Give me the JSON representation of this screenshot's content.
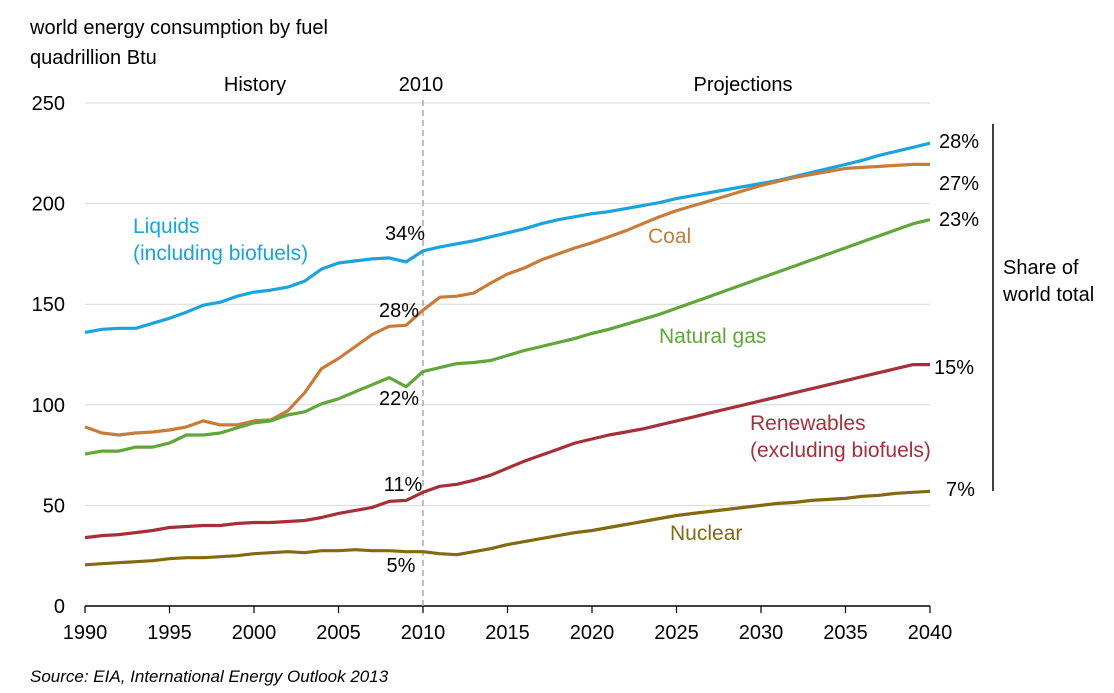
{
  "chart_data": {
    "type": "line",
    "title": "world energy consumption by fuel",
    "ylabel": "quadrillion Btu",
    "xlim": [
      1990,
      2040
    ],
    "ylim": [
      0,
      250
    ],
    "x_ticks": [
      "1990",
      "1995",
      "2000",
      "2005",
      "2010",
      "2015",
      "2020",
      "2025",
      "2030",
      "2035",
      "2040"
    ],
    "y_ticks": [
      "0",
      "50",
      "100",
      "150",
      "200",
      "250"
    ],
    "grid": "horizontal",
    "divider": {
      "x": 2010,
      "label": "2010",
      "left_label": "History",
      "right_label": "Projections"
    },
    "share_label": "Share of\nworld total",
    "series": [
      {
        "name": "Liquids\n(including biofuels)",
        "color": "#1ba3dd",
        "x": [
          1990,
          1991,
          1992,
          1993,
          1994,
          1995,
          1996,
          1997,
          1998,
          1999,
          2000,
          2001,
          2002,
          2003,
          2004,
          2005,
          2006,
          2007,
          2008,
          2009,
          2010,
          2011,
          2012,
          2013,
          2014,
          2015,
          2016,
          2017,
          2018,
          2019,
          2020,
          2021,
          2022,
          2023,
          2024,
          2025,
          2026,
          2027,
          2028,
          2029,
          2030,
          2031,
          2032,
          2033,
          2034,
          2035,
          2036,
          2037,
          2038,
          2039,
          2040
        ],
        "values": [
          136,
          137.5,
          138,
          138,
          140.5,
          143,
          146,
          149.5,
          151,
          154,
          156,
          157,
          158.5,
          161.5,
          167.5,
          170.5,
          171.5,
          172.5,
          173,
          171,
          176.5,
          178.5,
          180,
          181.5,
          183.5,
          185.5,
          187.5,
          190,
          192,
          193.5,
          195,
          196,
          197.5,
          199,
          200.5,
          202.5,
          204,
          205.5,
          207,
          208.5,
          210,
          211.5,
          213.5,
          215.5,
          217.5,
          219.5,
          221.5,
          224,
          226,
          228,
          230
        ],
        "share_2010": "34%",
        "share_2040": "28%"
      },
      {
        "name": "Coal",
        "color": "#c97b39",
        "x": [
          1990,
          1991,
          1992,
          1993,
          1994,
          1995,
          1996,
          1997,
          1998,
          1999,
          2000,
          2001,
          2002,
          2003,
          2004,
          2005,
          2006,
          2007,
          2008,
          2009,
          2010,
          2011,
          2012,
          2013,
          2014,
          2015,
          2016,
          2017,
          2018,
          2019,
          2020,
          2021,
          2022,
          2023,
          2024,
          2025,
          2026,
          2027,
          2028,
          2029,
          2030,
          2031,
          2032,
          2033,
          2034,
          2035,
          2036,
          2037,
          2038,
          2039,
          2040
        ],
        "values": [
          89,
          86,
          85,
          86,
          86.5,
          87.5,
          89,
          92,
          90,
          90,
          92,
          92.5,
          97,
          106,
          118,
          123,
          129,
          135,
          139,
          139.5,
          147,
          153.5,
          154,
          155.5,
          160.5,
          165,
          168,
          172,
          175,
          178,
          180.5,
          183.5,
          186.5,
          190,
          193.5,
          196.5,
          199,
          201.5,
          204,
          206.5,
          209,
          211,
          213,
          214.5,
          216,
          217.5,
          218,
          218.5,
          219,
          219.5,
          219.5
        ],
        "share_2010": "28%",
        "share_2040": "27%"
      },
      {
        "name": "Natural gas",
        "color": "#60a63a",
        "x": [
          1990,
          1991,
          1992,
          1993,
          1994,
          1995,
          1996,
          1997,
          1998,
          1999,
          2000,
          2001,
          2002,
          2003,
          2004,
          2005,
          2006,
          2007,
          2008,
          2009,
          2010,
          2011,
          2012,
          2013,
          2014,
          2015,
          2016,
          2017,
          2018,
          2019,
          2020,
          2021,
          2022,
          2023,
          2024,
          2025,
          2026,
          2027,
          2028,
          2029,
          2030,
          2031,
          2032,
          2033,
          2034,
          2035,
          2036,
          2037,
          2038,
          2039,
          2040
        ],
        "values": [
          75.5,
          77,
          77,
          79,
          79,
          81,
          85,
          85,
          86,
          88.5,
          91,
          92,
          95,
          96.5,
          100.5,
          103,
          106.5,
          110,
          113.5,
          109,
          116.5,
          118.5,
          120.5,
          121,
          122,
          124.5,
          127,
          129,
          131,
          133,
          135.5,
          137.5,
          140,
          142.5,
          145,
          148,
          151,
          154,
          157,
          160,
          163,
          166,
          169,
          172,
          175,
          178,
          181,
          184,
          187,
          190,
          192
        ],
        "share_2010": "22%",
        "share_2040": "23%"
      },
      {
        "name": "Renewables\n(excluding biofuels)",
        "color": "#a5303a",
        "x": [
          1990,
          1991,
          1992,
          1993,
          1994,
          1995,
          1996,
          1997,
          1998,
          1999,
          2000,
          2001,
          2002,
          2003,
          2004,
          2005,
          2006,
          2007,
          2008,
          2009,
          2010,
          2011,
          2012,
          2013,
          2014,
          2015,
          2016,
          2017,
          2018,
          2019,
          2020,
          2021,
          2022,
          2023,
          2024,
          2025,
          2026,
          2027,
          2028,
          2029,
          2030,
          2031,
          2032,
          2033,
          2034,
          2035,
          2036,
          2037,
          2038,
          2039,
          2040
        ],
        "values": [
          34,
          35,
          35.5,
          36.5,
          37.5,
          39,
          39.5,
          40,
          40,
          41,
          41.5,
          41.5,
          42,
          42.5,
          44,
          46,
          47.5,
          49,
          52,
          52.5,
          56.5,
          59.5,
          60.5,
          62.5,
          65,
          68.5,
          72,
          75,
          78,
          81,
          83,
          85,
          86.5,
          88,
          90,
          92,
          94,
          96,
          98,
          100,
          102,
          104,
          106,
          108,
          110,
          112,
          114,
          116,
          118,
          120,
          120
        ],
        "share_2010": "11%",
        "share_2040": "15%"
      },
      {
        "name": "Nuclear",
        "color": "#836a10",
        "x": [
          1990,
          1991,
          1992,
          1993,
          1994,
          1995,
          1996,
          1997,
          1998,
          1999,
          2000,
          2001,
          2002,
          2003,
          2004,
          2005,
          2006,
          2007,
          2008,
          2009,
          2010,
          2011,
          2012,
          2013,
          2014,
          2015,
          2016,
          2017,
          2018,
          2019,
          2020,
          2021,
          2022,
          2023,
          2024,
          2025,
          2026,
          2027,
          2028,
          2029,
          2030,
          2031,
          2032,
          2033,
          2034,
          2035,
          2036,
          2037,
          2038,
          2039,
          2040
        ],
        "values": [
          20.5,
          21,
          21.5,
          22,
          22.5,
          23.5,
          24,
          24,
          24.5,
          25,
          26,
          26.5,
          27,
          26.5,
          27.5,
          27.5,
          28,
          27.5,
          27.5,
          27,
          27,
          26,
          25.5,
          27,
          28.5,
          30.5,
          32,
          33.5,
          35,
          36.5,
          37.5,
          39,
          40.5,
          42,
          43.5,
          45,
          46,
          47,
          48,
          49,
          50,
          51,
          51.5,
          52.5,
          53,
          53.5,
          54.5,
          55,
          56,
          56.5,
          57
        ],
        "share_2010": "5%",
        "share_2040": "7%"
      }
    ]
  },
  "source": "Source:  EIA, International Energy Outlook 2013"
}
